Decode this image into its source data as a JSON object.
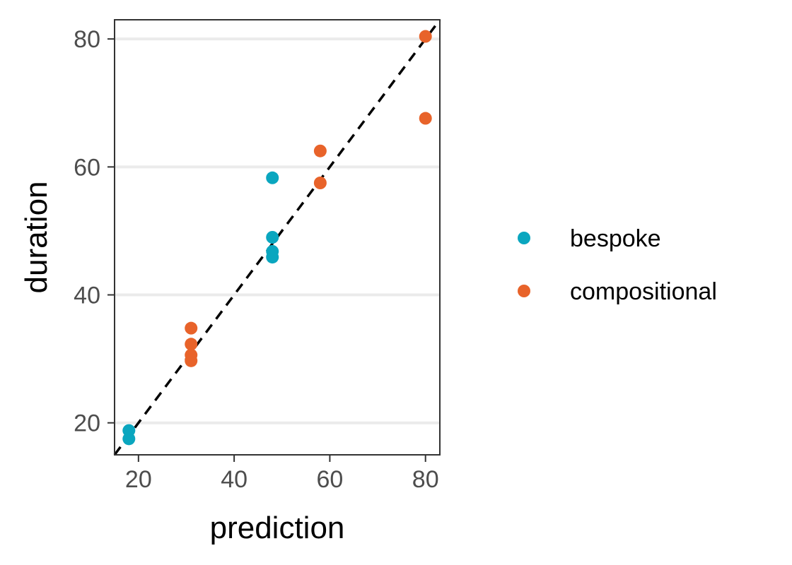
{
  "chart_data": {
    "type": "scatter",
    "xlabel": "prediction",
    "ylabel": "duration",
    "xlim": [
      15,
      83
    ],
    "ylim": [
      15,
      83
    ],
    "xticks": [
      20,
      40,
      60,
      80
    ],
    "yticks": [
      20,
      40,
      60,
      80
    ],
    "grid": "horizontal-major",
    "legend_position": "right",
    "reference_line": {
      "type": "identity",
      "style": "dashed",
      "color": "#000000"
    },
    "series": [
      {
        "name": "bespoke",
        "color": "#0AA6BF",
        "points": [
          {
            "x": 18,
            "y": 17.5
          },
          {
            "x": 18,
            "y": 18.8
          },
          {
            "x": 48,
            "y": 58.3
          },
          {
            "x": 48,
            "y": 49.0
          },
          {
            "x": 48,
            "y": 46.8
          },
          {
            "x": 48,
            "y": 45.9
          }
        ]
      },
      {
        "name": "compositional",
        "color": "#E8632A",
        "points": [
          {
            "x": 31,
            "y": 34.8
          },
          {
            "x": 31,
            "y": 32.3
          },
          {
            "x": 31,
            "y": 30.6
          },
          {
            "x": 31,
            "y": 29.7
          },
          {
            "x": 58,
            "y": 62.5
          },
          {
            "x": 58,
            "y": 57.5
          },
          {
            "x": 80,
            "y": 80.4
          },
          {
            "x": 80,
            "y": 67.6
          }
        ]
      }
    ]
  }
}
